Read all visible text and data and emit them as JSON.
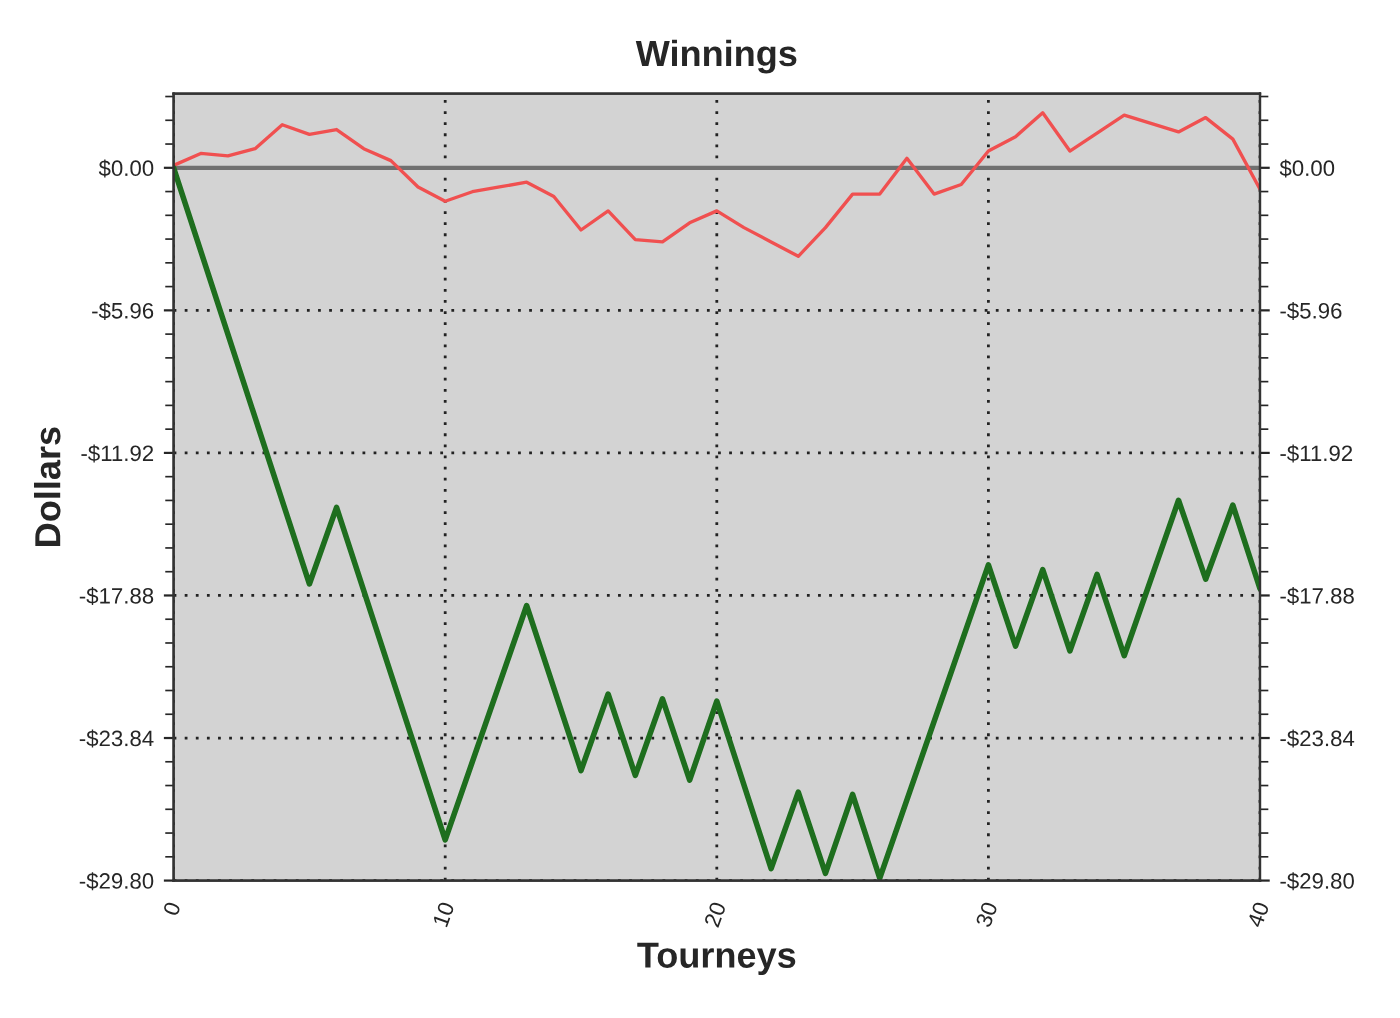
{
  "chart_data": {
    "type": "line",
    "title": "Winnings",
    "xlabel": "Tourneys",
    "ylabel": "Dollars",
    "xlim": [
      0,
      40
    ],
    "xticks": [
      0,
      10,
      20,
      30,
      40
    ],
    "ylim": [
      -29.8,
      3.1
    ],
    "yticks": [
      {
        "value": 0,
        "label": "$0.00"
      },
      {
        "value": -5.96,
        "label": "-$5.96"
      },
      {
        "value": -11.92,
        "label": "-$11.92"
      },
      {
        "value": -17.88,
        "label": "-$17.88"
      },
      {
        "value": -23.84,
        "label": "-$23.84"
      },
      {
        "value": -29.8,
        "label": "-$29.80"
      }
    ],
    "y2lim": [
      -29.8,
      3.1
    ],
    "y2ticks": [
      {
        "value": 0,
        "label": "$0.00"
      },
      {
        "value": -5.96,
        "label": "-$5.96"
      },
      {
        "value": -11.92,
        "label": "-$11.92"
      },
      {
        "value": -17.88,
        "label": "-$17.88"
      },
      {
        "value": -23.84,
        "label": "-$23.84"
      },
      {
        "value": -29.8,
        "label": "-$29.80"
      }
    ],
    "grid": true,
    "legend": false,
    "marker": "none",
    "line_style": "solid",
    "ref_lines": [
      {
        "axis": "y",
        "value": 0,
        "label": null,
        "color": "#707070",
        "line_style": "solid"
      }
    ],
    "series": [
      {
        "color": "#f05050",
        "x": [
          0,
          1,
          2,
          3,
          4,
          5,
          6,
          7,
          8,
          9,
          10,
          11,
          12,
          13,
          14,
          15,
          16,
          17,
          18,
          19,
          20,
          21,
          22,
          23,
          24,
          25,
          26,
          27,
          28,
          29,
          30,
          31,
          32,
          33,
          34,
          35,
          36,
          37,
          38,
          39,
          40
        ],
        "values": [
          0.1,
          0.6,
          0.5,
          0.8,
          1.8,
          1.4,
          1.6,
          0.8,
          0.3,
          -0.8,
          -1.4,
          -1.0,
          -0.8,
          -0.6,
          -1.2,
          -2.6,
          -1.8,
          -3.0,
          -3.1,
          -2.3,
          -1.8,
          -2.5,
          -3.1,
          -3.7,
          -2.5,
          -1.1,
          -1.1,
          0.4,
          -1.1,
          -0.7,
          0.7,
          1.3,
          2.3,
          0.7,
          null,
          2.2,
          null,
          1.5,
          2.1,
          1.2,
          -0.9
        ]
      },
      {
        "color": "#1e6e1e",
        "x": [
          0,
          5,
          6,
          10,
          13,
          15,
          16,
          17,
          18,
          19,
          20,
          22,
          23,
          24,
          25,
          26,
          30,
          31,
          32,
          33,
          34,
          35,
          37,
          38,
          39,
          40
        ],
        "values": [
          0,
          -17.4,
          -14.2,
          -28.1,
          -18.3,
          -25.2,
          -22.0,
          -25.4,
          -22.2,
          -25.6,
          -22.3,
          -29.3,
          -26.1,
          -29.5,
          -26.2,
          -29.7,
          -16.6,
          -20.0,
          -16.8,
          -20.2,
          -17.0,
          -20.4,
          -13.9,
          -17.2,
          -14.1,
          -17.6
        ]
      }
    ]
  }
}
